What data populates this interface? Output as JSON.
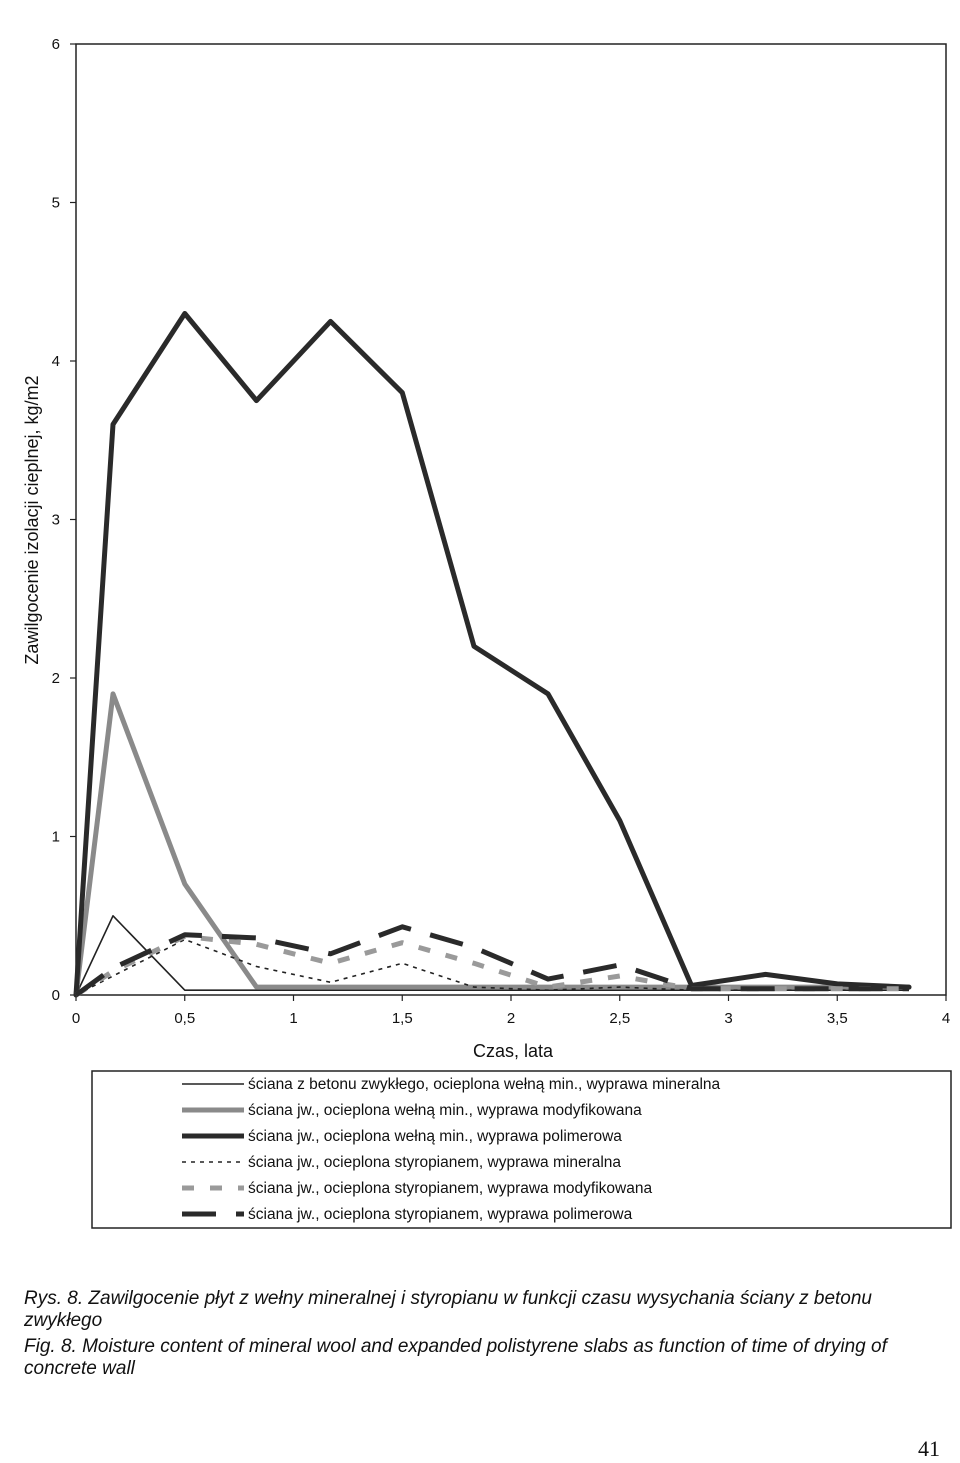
{
  "chart_data": {
    "type": "line",
    "title": "",
    "xlabel": "Czas, lata",
    "ylabel": "Zawilgocenie  izolacji cieplnej, kg/m2",
    "xlim": [
      0,
      4
    ],
    "ylim": [
      0,
      6
    ],
    "x_ticks": [
      "0",
      "0,5",
      "1",
      "1,5",
      "2",
      "2,5",
      "3",
      "3,5",
      "4"
    ],
    "y_ticks": [
      "0",
      "1",
      "2",
      "3",
      "4",
      "5",
      "6"
    ],
    "grid": false,
    "legend_position": "bottom",
    "series": [
      {
        "name": "ściana z betonu zwykłego, ocieplona wełną min., wyprawa mineralna",
        "style": "thin-solid",
        "color": "#222222",
        "x": [
          0,
          0.17,
          0.5,
          0.83,
          1.17,
          1.5,
          1.83,
          2.17,
          2.5,
          2.83,
          3.17,
          3.5,
          3.83
        ],
        "y": [
          0,
          0.5,
          0.03,
          0.03,
          0.03,
          0.03,
          0.03,
          0.03,
          0.03,
          0.03,
          0.03,
          0.03,
          0.03
        ]
      },
      {
        "name": "ściana jw., ocieplona wełną min., wyprawa modyfikowana",
        "style": "thick-gray",
        "color": "#8a8a8a",
        "x": [
          0,
          0.17,
          0.5,
          0.83,
          1.17,
          1.5,
          1.83,
          2.17,
          2.5,
          2.83,
          3.17,
          3.5,
          3.83
        ],
        "y": [
          0,
          1.9,
          0.7,
          0.05,
          0.05,
          0.05,
          0.05,
          0.05,
          0.05,
          0.05,
          0.05,
          0.05,
          0.05
        ]
      },
      {
        "name": "ściana jw., ocieplona wełną min., wyprawa polimerowa",
        "style": "thick-solid",
        "color": "#2a2a2a",
        "x": [
          0,
          0.17,
          0.5,
          0.83,
          1.17,
          1.5,
          1.83,
          2.17,
          2.5,
          2.83,
          3.17,
          3.5,
          3.83
        ],
        "y": [
          0,
          3.6,
          4.3,
          3.75,
          4.25,
          3.8,
          2.2,
          1.9,
          1.1,
          0.06,
          0.13,
          0.07,
          0.05
        ]
      },
      {
        "name": "ściana jw., ocieplona styropianem, wyprawa mineralna",
        "style": "dotted",
        "color": "#222222",
        "x": [
          0,
          0.17,
          0.5,
          0.83,
          1.17,
          1.5,
          1.83,
          2.17,
          2.5,
          2.83,
          3.17,
          3.5,
          3.83
        ],
        "y": [
          0,
          0.12,
          0.35,
          0.18,
          0.08,
          0.2,
          0.05,
          0.03,
          0.05,
          0.03,
          0.03,
          0.03,
          0.03
        ]
      },
      {
        "name": "ściana jw., ocieplona styropianem, wyprawa modyfikowana",
        "style": "gray-dashed",
        "color": "#9a9a9a",
        "x": [
          0,
          0.17,
          0.5,
          0.83,
          1.17,
          1.5,
          1.83,
          2.17,
          2.5,
          2.83,
          3.17,
          3.5,
          3.83
        ],
        "y": [
          0,
          0.15,
          0.37,
          0.32,
          0.2,
          0.33,
          0.2,
          0.05,
          0.12,
          0.04,
          0.04,
          0.04,
          0.04
        ]
      },
      {
        "name": "ściana jw., ocieplona styropianem, wyprawa polimerowa",
        "style": "thick-dashed",
        "color": "#2a2a2a",
        "x": [
          0,
          0.17,
          0.5,
          0.83,
          1.17,
          1.5,
          1.83,
          2.17,
          2.5,
          2.83,
          3.17,
          3.5,
          3.83
        ],
        "y": [
          0,
          0.17,
          0.38,
          0.36,
          0.26,
          0.43,
          0.3,
          0.1,
          0.19,
          0.04,
          0.04,
          0.04,
          0.04
        ]
      }
    ]
  },
  "caption": {
    "polish": "Rys. 8. Zawilgocenie płyt z wełny mineralnej i styropianu w funkcji czasu wysychania ściany z betonu zwykłego",
    "english": "Fig. 8. Moisture content of mineral wool and expanded polistyrene slabs as function of time of drying of concrete wall"
  },
  "page_number": "41"
}
